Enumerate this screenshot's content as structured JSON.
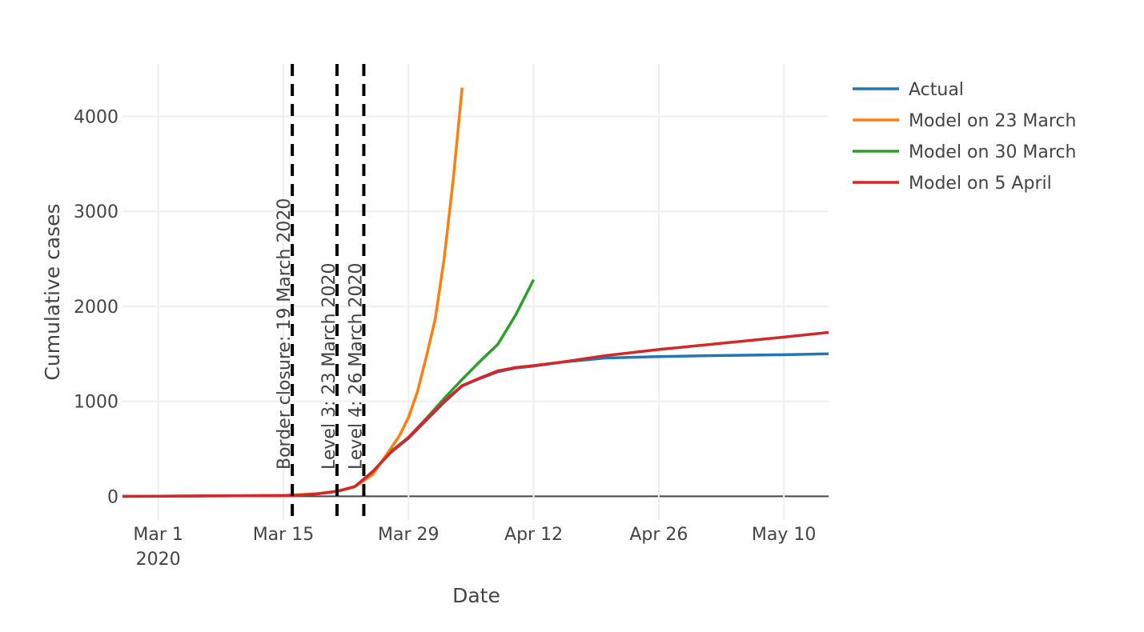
{
  "chart_data": {
    "type": "line",
    "x_label": "Date",
    "y_label": "Cumulative cases",
    "xlim": [
      "2020-02-26",
      "2020-05-15"
    ],
    "ylim": [
      -250,
      4550
    ],
    "xticks": [
      {
        "value": "2020-03-01",
        "label": "Mar 1",
        "sublabel": "2020"
      },
      {
        "value": "2020-03-15",
        "label": "Mar 15"
      },
      {
        "value": "2020-03-29",
        "label": "Mar 29"
      },
      {
        "value": "2020-04-12",
        "label": "Apr 12"
      },
      {
        "value": "2020-04-26",
        "label": "Apr 26"
      },
      {
        "value": "2020-05-10",
        "label": "May 10"
      }
    ],
    "yticks": [
      0,
      1000,
      2000,
      3000,
      4000
    ],
    "grid": true,
    "legend": "top-right",
    "annotations": [
      {
        "x": "2020-03-16",
        "text": "Border closure: 19 March 2020"
      },
      {
        "x": "2020-03-21",
        "text": "Level 3: 23 March 2020"
      },
      {
        "x": "2020-03-24",
        "text": "Level 4: 26 March 2020"
      }
    ],
    "series": [
      {
        "name": "Actual",
        "color": "#1f77b4",
        "x": [
          "2020-02-26",
          "2020-03-01",
          "2020-03-05",
          "2020-03-10",
          "2020-03-15",
          "2020-03-17",
          "2020-03-19",
          "2020-03-21",
          "2020-03-23",
          "2020-03-25",
          "2020-03-27",
          "2020-03-29",
          "2020-03-31",
          "2020-04-02",
          "2020-04-04",
          "2020-04-06",
          "2020-04-08",
          "2020-04-10",
          "2020-04-12",
          "2020-04-15",
          "2020-04-20",
          "2020-04-26",
          "2020-05-03",
          "2020-05-10",
          "2020-05-15"
        ],
        "values": [
          0,
          1,
          3,
          5,
          8,
          12,
          28,
          52,
          102,
          260,
          460,
          610,
          800,
          990,
          1160,
          1240,
          1310,
          1350,
          1370,
          1410,
          1455,
          1470,
          1482,
          1490,
          1500
        ]
      },
      {
        "name": "Model on 23 March",
        "color": "#ff7f0e",
        "x": [
          "2020-02-26",
          "2020-03-05",
          "2020-03-15",
          "2020-03-19",
          "2020-03-21",
          "2020-03-23",
          "2020-03-25",
          "2020-03-27",
          "2020-03-28",
          "2020-03-29",
          "2020-03-30",
          "2020-03-31",
          "2020-04-01",
          "2020-04-02",
          "2020-04-03",
          "2020-04-04"
        ],
        "values": [
          0,
          2,
          8,
          28,
          52,
          100,
          230,
          500,
          640,
          830,
          1100,
          1470,
          1870,
          2510,
          3330,
          4300
        ]
      },
      {
        "name": "Model on 30 March",
        "color": "#2ca02c",
        "x": [
          "2020-03-27",
          "2020-03-29",
          "2020-03-31",
          "2020-04-02",
          "2020-04-04",
          "2020-04-06",
          "2020-04-08",
          "2020-04-10",
          "2020-04-12"
        ],
        "values": [
          470,
          620,
          820,
          1030,
          1230,
          1420,
          1600,
          1910,
          2280
        ]
      },
      {
        "name": "Model on 5 April",
        "color": "#d62728",
        "x": [
          "2020-02-26",
          "2020-03-01",
          "2020-03-05",
          "2020-03-10",
          "2020-03-15",
          "2020-03-17",
          "2020-03-19",
          "2020-03-21",
          "2020-03-23",
          "2020-03-25",
          "2020-03-27",
          "2020-03-29",
          "2020-03-31",
          "2020-04-02",
          "2020-04-04",
          "2020-04-06",
          "2020-04-08",
          "2020-04-10",
          "2020-04-12",
          "2020-04-15",
          "2020-04-20",
          "2020-04-26",
          "2020-05-03",
          "2020-05-10",
          "2020-05-15"
        ],
        "values": [
          0,
          1,
          3,
          5,
          8,
          12,
          28,
          52,
          102,
          260,
          460,
          620,
          810,
          1000,
          1165,
          1245,
          1320,
          1355,
          1375,
          1410,
          1480,
          1545,
          1610,
          1675,
          1725
        ]
      }
    ]
  }
}
